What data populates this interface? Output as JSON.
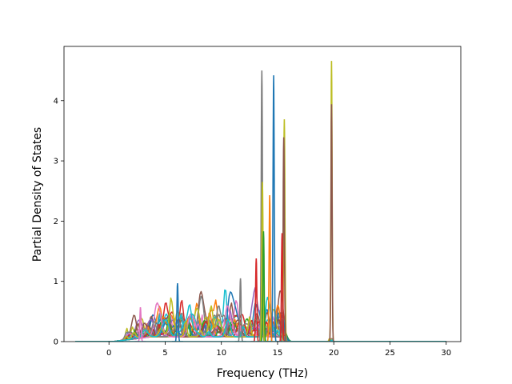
{
  "chart_data": {
    "type": "line",
    "title": "",
    "xlabel": "Frequency (THz)",
    "ylabel": "Partial Density of States",
    "xlim": [
      -4,
      31.3
    ],
    "ylim": [
      0,
      4.9
    ],
    "xticks": [
      "0",
      "5",
      "10",
      "15",
      "20",
      "25",
      "30"
    ],
    "yticks": [
      "0",
      "1",
      "2",
      "3",
      "4"
    ],
    "grid": false,
    "legend": false,
    "series_colors": [
      "#1f77b4",
      "#ff7f0e",
      "#2ca02c",
      "#d62728",
      "#9467bd",
      "#8c564b",
      "#e377c2",
      "#7f7f7f",
      "#bcbd22",
      "#17becf"
    ],
    "x_extent": [
      -3,
      30
    ],
    "dominant_peaks": [
      {
        "x": 13.6,
        "y": 4.5,
        "color": "#7f7f7f"
      },
      {
        "x": 14.65,
        "y": 4.42,
        "color": "#1f77b4"
      },
      {
        "x": 15.6,
        "y": 3.69,
        "color": "#bcbd22"
      },
      {
        "x": 15.55,
        "y": 3.39,
        "color": "#8c564b"
      },
      {
        "x": 19.8,
        "y": 4.66,
        "color": "#bcbd22"
      },
      {
        "x": 19.8,
        "y": 3.94,
        "color": "#8c564b"
      },
      {
        "x": 13.65,
        "y": 2.65,
        "color": "#bcbd22"
      },
      {
        "x": 14.3,
        "y": 2.43,
        "color": "#ff7f0e"
      },
      {
        "x": 13.75,
        "y": 1.83,
        "color": "#2ca02c"
      },
      {
        "x": 15.4,
        "y": 1.8,
        "color": "#d62728"
      },
      {
        "x": 6.1,
        "y": 0.97,
        "color": "#1f77b4"
      },
      {
        "x": 2.8,
        "y": 0.57,
        "color": "#e377c2"
      },
      {
        "x": 11.7,
        "y": 1.05,
        "color": "#7f7f7f"
      },
      {
        "x": 13.1,
        "y": 1.38,
        "color": "#d62728"
      }
    ]
  }
}
